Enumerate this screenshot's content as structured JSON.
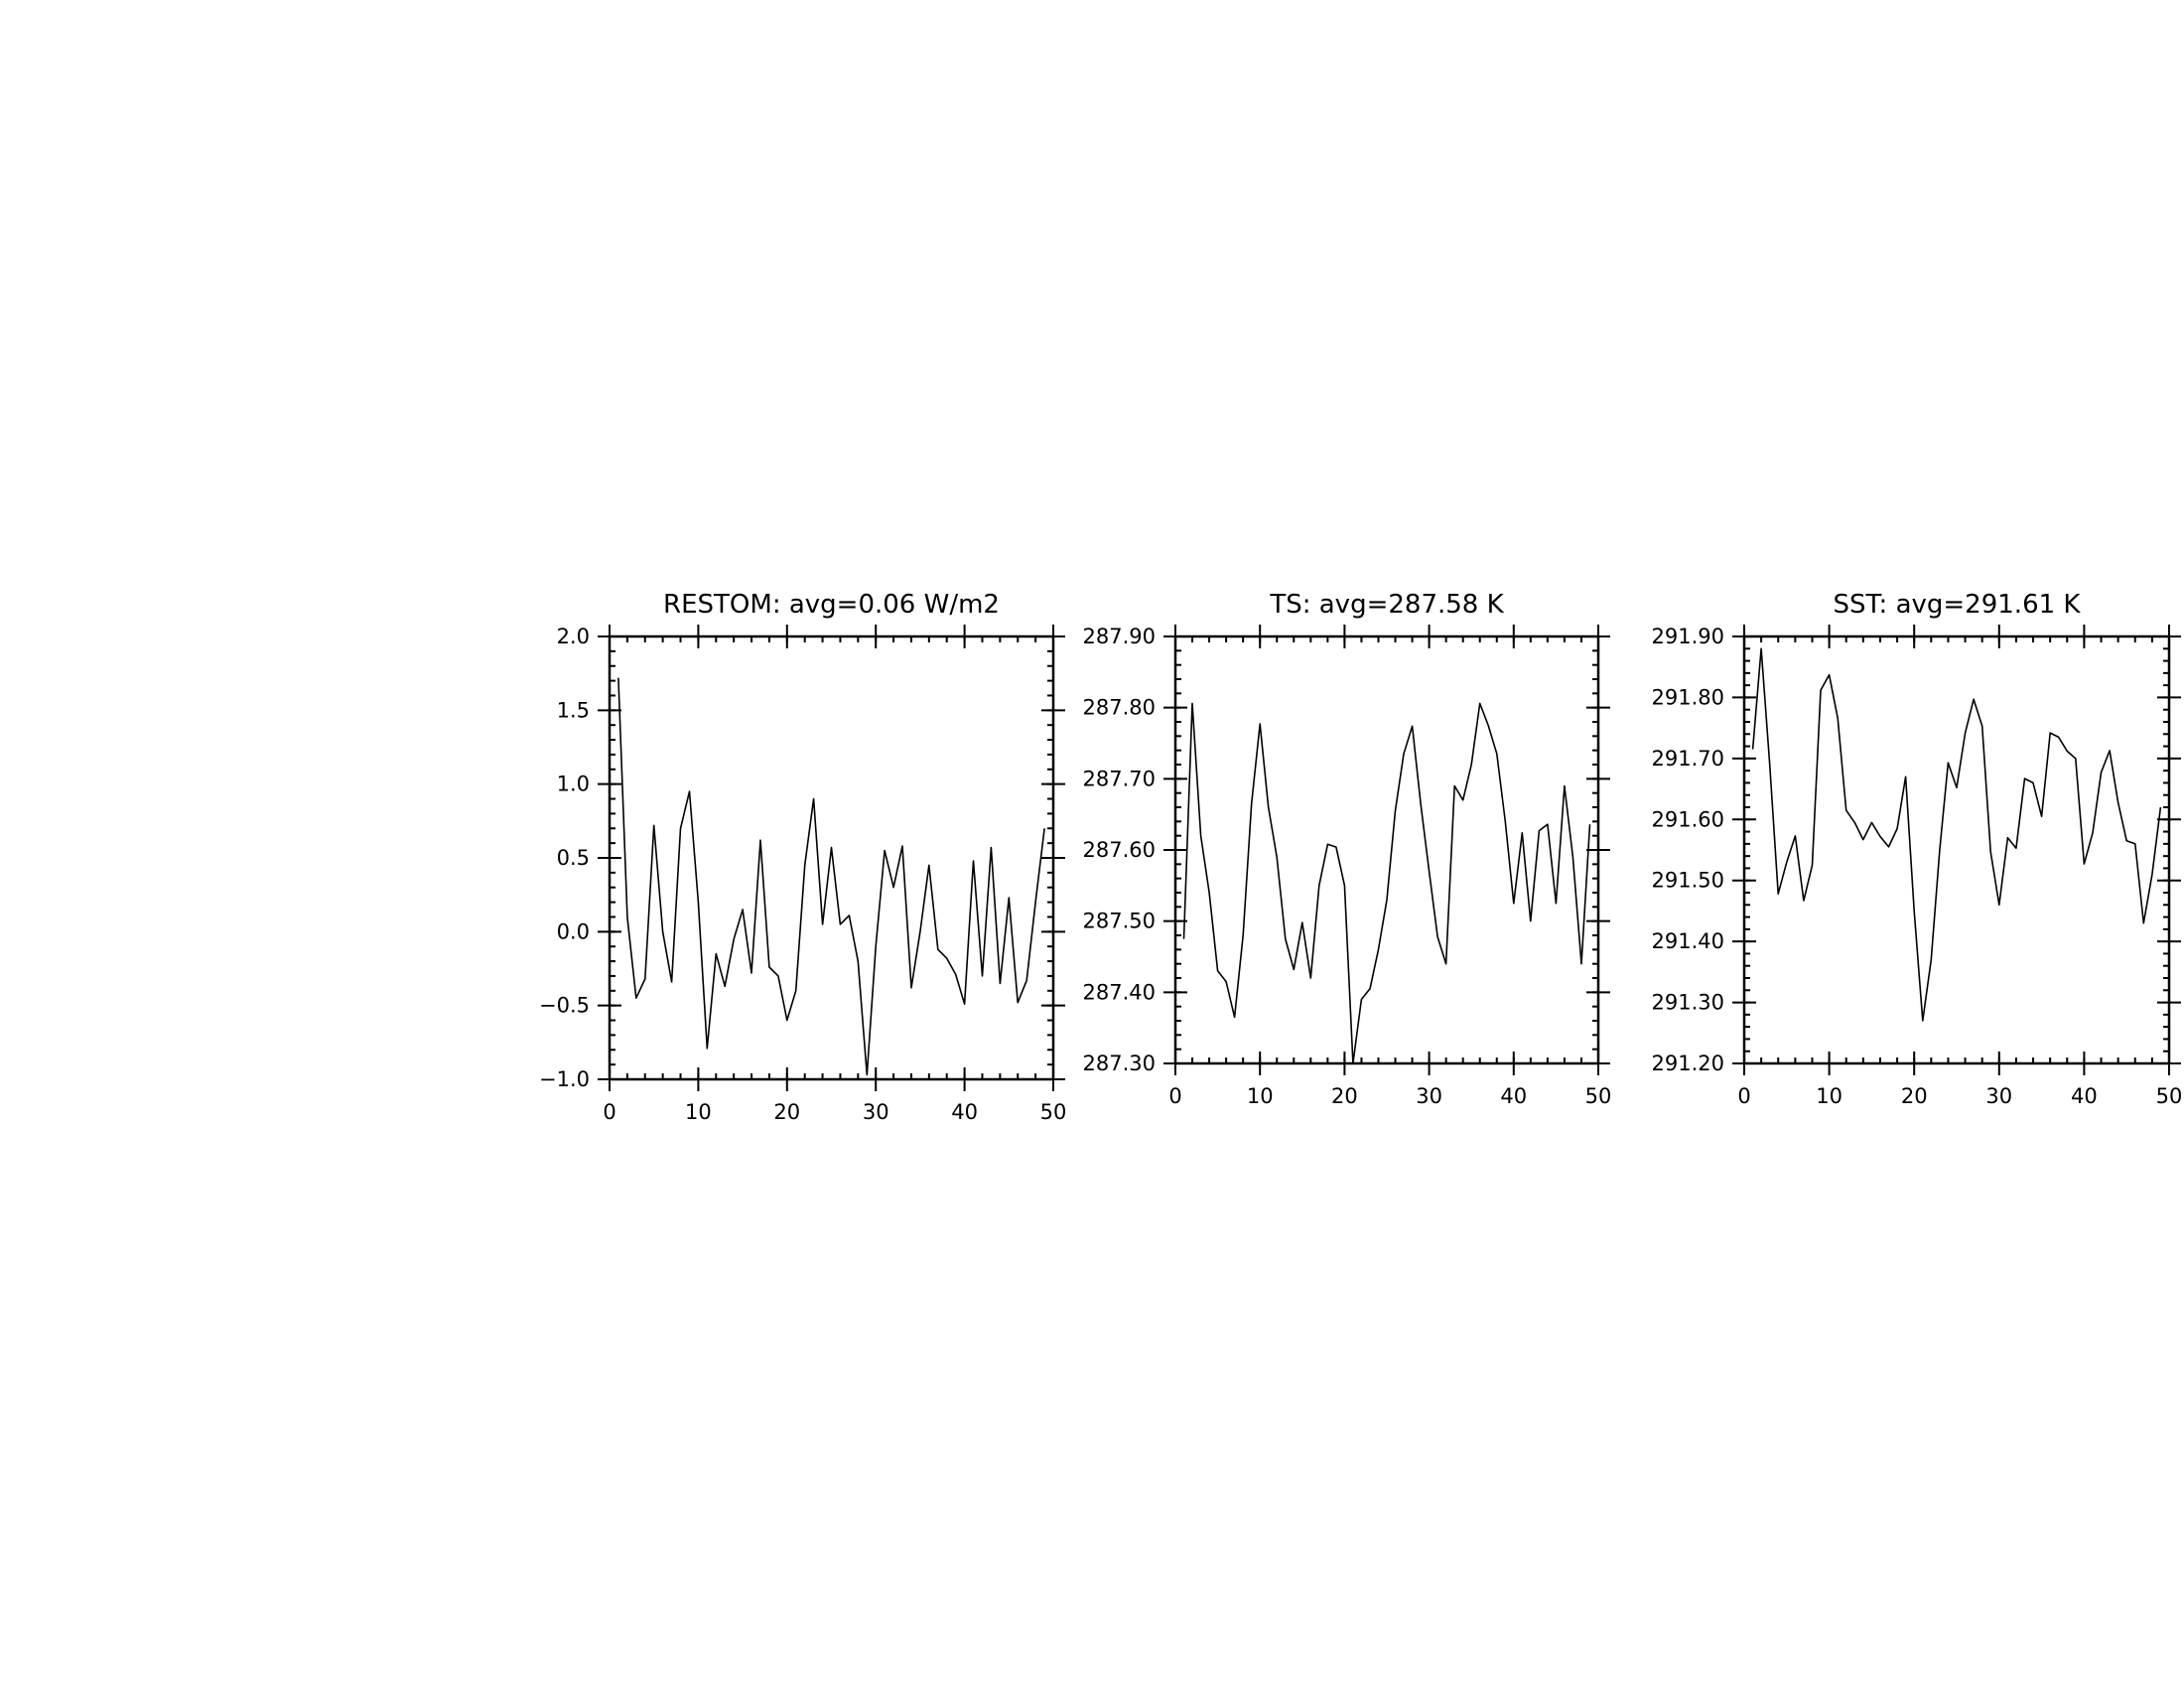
{
  "chart_data": [
    {
      "type": "line",
      "title": "RESTOM: avg=0.06 W/m2",
      "xlim": [
        0,
        50
      ],
      "ylim": [
        -1.0,
        2.0
      ],
      "xticks": [
        0,
        10,
        20,
        30,
        40,
        50
      ],
      "xtick_labels": [
        "0",
        "10",
        "20",
        "30",
        "40",
        "50"
      ],
      "yticks": [
        -1.0,
        -0.5,
        0.0,
        0.5,
        1.0,
        1.5,
        2.0
      ],
      "ytick_labels": [
        "−1.0",
        "−0.5",
        "0.0",
        "0.5",
        "1.0",
        "1.5",
        "2.0"
      ],
      "y_minor_step": 0.1,
      "x_minor_step": 2,
      "series": [
        {
          "x": [
            1,
            2,
            3,
            4,
            5,
            6,
            7,
            8,
            9,
            10,
            11,
            12,
            13,
            14,
            15,
            16,
            17,
            18,
            19,
            20,
            21,
            22,
            23,
            24,
            25,
            26,
            27,
            28,
            29,
            30,
            31,
            32,
            33,
            34,
            35,
            36,
            37,
            38,
            39,
            40,
            41,
            42,
            43,
            44,
            45,
            46,
            47,
            48,
            49
          ],
          "values": [
            1.72,
            0.1,
            -0.45,
            -0.32,
            0.72,
            0.0,
            -0.34,
            0.7,
            0.95,
            0.2,
            -0.79,
            -0.15,
            -0.37,
            -0.05,
            0.15,
            -0.28,
            0.62,
            -0.24,
            -0.3,
            -0.6,
            -0.4,
            0.45,
            0.9,
            0.05,
            0.57,
            0.05,
            0.11,
            -0.2,
            -0.97,
            -0.1,
            0.55,
            0.3,
            0.58,
            -0.38,
            0.0,
            0.45,
            -0.12,
            -0.18,
            -0.29,
            -0.49,
            0.48,
            -0.3,
            0.57,
            -0.35,
            0.23,
            -0.48,
            -0.33,
            0.2,
            0.7
          ]
        }
      ]
    },
    {
      "type": "line",
      "title": "TS: avg=287.58 K",
      "xlim": [
        0,
        50
      ],
      "ylim": [
        287.3,
        287.9
      ],
      "xticks": [
        0,
        10,
        20,
        30,
        40,
        50
      ],
      "xtick_labels": [
        "0",
        "10",
        "20",
        "30",
        "40",
        "50"
      ],
      "yticks": [
        287.3,
        287.4,
        287.5,
        287.6,
        287.7,
        287.8,
        287.9
      ],
      "ytick_labels": [
        "287.30",
        "287.40",
        "287.50",
        "287.60",
        "287.70",
        "287.80",
        "287.90"
      ],
      "y_minor_step": 0.02,
      "x_minor_step": 2,
      "series": [
        {
          "x": [
            1,
            2,
            3,
            4,
            5,
            6,
            7,
            8,
            9,
            10,
            11,
            12,
            13,
            14,
            15,
            16,
            17,
            18,
            19,
            20,
            21,
            22,
            23,
            24,
            25,
            26,
            27,
            28,
            29,
            30,
            31,
            32,
            33,
            34,
            35,
            36,
            37,
            38,
            39,
            40,
            41,
            42,
            43,
            44,
            45,
            46,
            47,
            48,
            49
          ],
          "values": [
            287.475,
            287.806,
            287.62,
            287.54,
            287.43,
            287.415,
            287.365,
            287.48,
            287.665,
            287.777,
            287.66,
            287.59,
            287.475,
            287.432,
            287.498,
            287.42,
            287.55,
            287.608,
            287.604,
            287.55,
            287.3,
            287.39,
            287.405,
            287.46,
            287.53,
            287.655,
            287.735,
            287.774,
            287.665,
            287.57,
            287.478,
            287.44,
            287.69,
            287.67,
            287.72,
            287.806,
            287.775,
            287.735,
            287.64,
            287.525,
            287.624,
            287.5,
            287.627,
            287.636,
            287.525,
            287.69,
            287.59,
            287.44,
            287.636
          ]
        }
      ]
    },
    {
      "type": "line",
      "title": "SST: avg=291.61 K",
      "xlim": [
        0,
        50
      ],
      "ylim": [
        291.2,
        291.9
      ],
      "xticks": [
        0,
        10,
        20,
        30,
        40,
        50
      ],
      "xtick_labels": [
        "0",
        "10",
        "20",
        "30",
        "40",
        "50"
      ],
      "yticks": [
        291.2,
        291.3,
        291.4,
        291.5,
        291.6,
        291.7,
        291.8,
        291.9
      ],
      "ytick_labels": [
        "291.20",
        "291.30",
        "291.40",
        "291.50",
        "291.60",
        "291.70",
        "291.80",
        "291.90"
      ],
      "y_minor_step": 0.02,
      "x_minor_step": 2,
      "series": [
        {
          "x": [
            1,
            2,
            3,
            4,
            5,
            6,
            7,
            8,
            9,
            10,
            11,
            12,
            13,
            14,
            15,
            16,
            17,
            18,
            19,
            20,
            21,
            22,
            23,
            24,
            25,
            26,
            27,
            28,
            29,
            30,
            31,
            32,
            33,
            34,
            35,
            36,
            37,
            38,
            39,
            40,
            41,
            42,
            43,
            44,
            45,
            46,
            47,
            48,
            49
          ],
          "values": [
            291.715,
            291.88,
            291.69,
            291.478,
            291.53,
            291.573,
            291.467,
            291.525,
            291.812,
            291.837,
            291.766,
            291.615,
            291.595,
            291.567,
            291.595,
            291.572,
            291.555,
            291.585,
            291.67,
            291.45,
            291.27,
            291.37,
            291.55,
            291.693,
            291.652,
            291.742,
            291.797,
            291.753,
            291.547,
            291.46,
            291.57,
            291.553,
            291.667,
            291.66,
            291.605,
            291.742,
            291.735,
            291.712,
            291.7,
            291.527,
            291.578,
            291.677,
            291.713,
            291.628,
            291.565,
            291.56,
            291.43,
            291.51,
            291.62
          ]
        }
      ]
    }
  ]
}
